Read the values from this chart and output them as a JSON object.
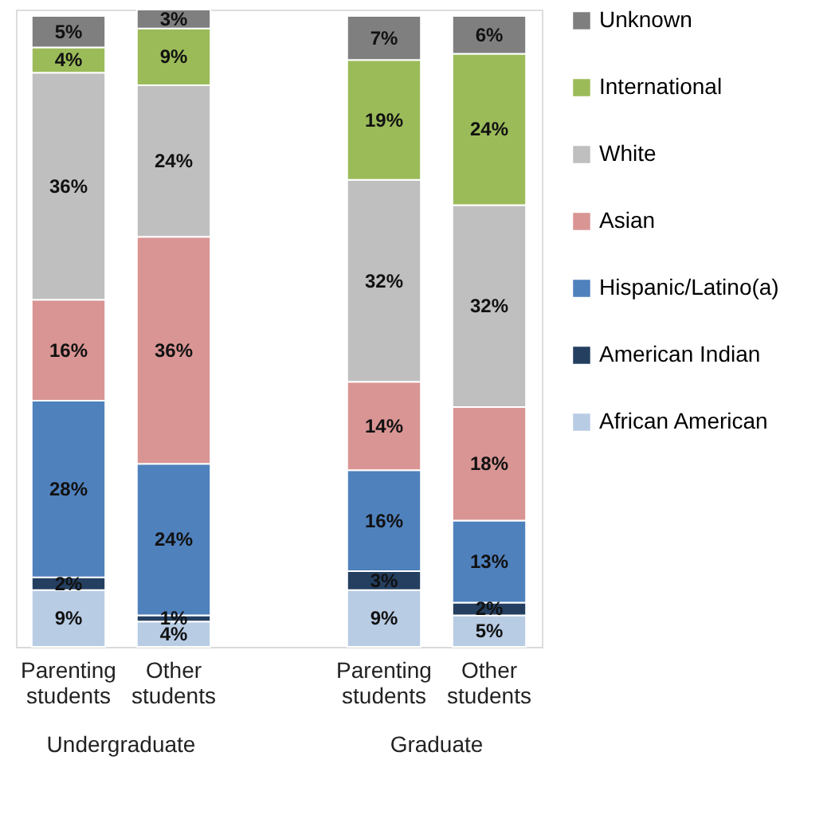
{
  "chart_data": {
    "type": "bar",
    "stacked": true,
    "categories": [
      "Parenting students",
      "Other students",
      null,
      "Parenting students",
      "Other students"
    ],
    "series": [
      {
        "name": "African American",
        "color": "#b8cce4",
        "values": [
          9,
          4,
          null,
          9,
          5
        ],
        "value_labels": [
          "9%",
          "4%",
          null,
          "9%",
          "5%"
        ]
      },
      {
        "name": "American Indian",
        "color": "#243f60",
        "values": [
          2,
          1,
          null,
          3,
          2
        ],
        "value_labels": [
          "2%",
          "1%",
          null,
          "3%",
          "2%"
        ]
      },
      {
        "name": "Hispanic/Latino(a)",
        "color": "#4f81bd",
        "values": [
          28,
          24,
          null,
          16,
          13
        ],
        "value_labels": [
          "28%",
          "24%",
          null,
          "16%",
          "13%"
        ]
      },
      {
        "name": "Asian",
        "color": "#d99594",
        "values": [
          16,
          36,
          null,
          14,
          18
        ],
        "value_labels": [
          "16%",
          "36%",
          null,
          "14%",
          "18%"
        ]
      },
      {
        "name": "White",
        "color": "#bfbfbf",
        "values": [
          36,
          24,
          null,
          32,
          32
        ],
        "value_labels": [
          "36%",
          "24%",
          null,
          "32%",
          "32%"
        ]
      },
      {
        "name": "International",
        "color": "#9bbb59",
        "values": [
          4,
          9,
          null,
          19,
          24
        ],
        "value_labels": [
          "4%",
          "9%",
          null,
          "19%",
          "24%"
        ]
      },
      {
        "name": "Unknown",
        "color": "#7f7f7f",
        "values": [
          5,
          3,
          null,
          7,
          6
        ],
        "value_labels": [
          "5%",
          "3%",
          null,
          "7%",
          "6%"
        ]
      }
    ],
    "annotations": [
      "Undergraduate",
      "Graduate"
    ],
    "ylim": [
      0,
      101
    ],
    "tick_labels": "x",
    "legend": "right",
    "grid": false
  }
}
